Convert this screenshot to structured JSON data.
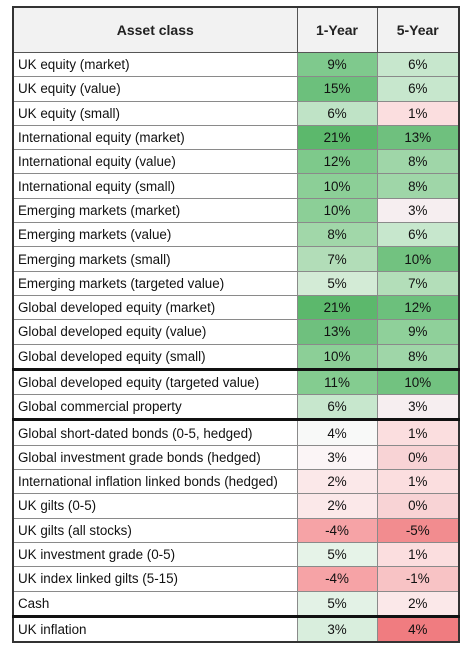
{
  "header": {
    "asset_class": "Asset class",
    "one_year": "1-Year",
    "five_year": "5-Year"
  },
  "rows": [
    {
      "label": "UK equity (market)",
      "y1": "9%",
      "y5": "6%",
      "c1": "#7fc98d",
      "c5": "#c7e7cd"
    },
    {
      "label": "UK equity (value)",
      "y1": "15%",
      "y5": "6%",
      "c1": "#6cc07c",
      "c5": "#c7e7cd"
    },
    {
      "label": "UK equity (small)",
      "y1": "6%",
      "y5": "1%",
      "c1": "#bfe3c6",
      "c5": "#fbdedf"
    },
    {
      "label": "International equity (market)",
      "y1": "21%",
      "y5": "13%",
      "c1": "#5cb86c",
      "c5": "#6fc07e"
    },
    {
      "label": "International equity (value)",
      "y1": "12%",
      "y5": "8%",
      "c1": "#7ec98b",
      "c5": "#9fd6a8"
    },
    {
      "label": "International equity (small)",
      "y1": "10%",
      "y5": "8%",
      "c1": "#8ccf97",
      "c5": "#9fd6a8"
    },
    {
      "label": "Emerging markets (market)",
      "y1": "10%",
      "y5": "3%",
      "c1": "#8ccf97",
      "c5": "#f6eef0"
    },
    {
      "label": "Emerging markets (value)",
      "y1": "8%",
      "y5": "6%",
      "c1": "#a1d7a9",
      "c5": "#c7e7cd"
    },
    {
      "label": "Emerging markets (small)",
      "y1": "7%",
      "y5": "10%",
      "c1": "#b2ddb8",
      "c5": "#72c280"
    },
    {
      "label": "Emerging markets (targeted value)",
      "y1": "5%",
      "y5": "7%",
      "c1": "#d3ebd6",
      "c5": "#b3deb9"
    },
    {
      "label": "Global developed equity (market)",
      "y1": "21%",
      "y5": "12%",
      "c1": "#5cb86c",
      "c5": "#6cc07c"
    },
    {
      "label": "Global developed equity (value)",
      "y1": "13%",
      "y5": "9%",
      "c1": "#6fc07e",
      "c5": "#8fd09a"
    },
    {
      "label": "Global developed equity (small)",
      "y1": "10%",
      "y5": "8%",
      "c1": "#8ccf97",
      "c5": "#9fd6a8"
    },
    {
      "label": "Global developed equity (targeted value)",
      "y1": "11%",
      "y5": "10%",
      "c1": "#84cc90",
      "c5": "#72c280"
    },
    {
      "label": "Global commercial property",
      "y1": "6%",
      "y5": "3%",
      "c1": "#c7e7cd",
      "c5": "#f6eef0"
    },
    {
      "label": "Global short-dated bonds (0-5, hedged)",
      "y1": "4%",
      "y5": "1%",
      "c1": "#f8f9f8",
      "c5": "#fbdedf"
    },
    {
      "label": "Global investment grade bonds (hedged)",
      "y1": "3%",
      "y5": "0%",
      "c1": "#fbf5f6",
      "c5": "#f8d3d5"
    },
    {
      "label": "International inflation linked bonds (hedged)",
      "y1": "2%",
      "y5": "1%",
      "c1": "#fbe8e9",
      "c5": "#fbdedf"
    },
    {
      "label": "UK gilts (0-5)",
      "y1": "2%",
      "y5": "0%",
      "c1": "#fbe8e9",
      "c5": "#f8d3d5"
    },
    {
      "label": "UK gilts (all stocks)",
      "y1": "-4%",
      "y5": "-5%",
      "c1": "#f6a3a6",
      "c5": "#f28c8f"
    },
    {
      "label": "UK investment grade (0-5)",
      "y1": "5%",
      "y5": "1%",
      "c1": "#e6f3e8",
      "c5": "#fbdedf"
    },
    {
      "label": "UK index linked gilts (5-15)",
      "y1": "-4%",
      "y5": "-1%",
      "c1": "#f6a3a6",
      "c5": "#f8c3c5"
    },
    {
      "label": "Cash",
      "y1": "5%",
      "y5": "2%",
      "c1": "#e3f2e6",
      "c5": "#fbe8e9"
    },
    {
      "label": "UK inflation",
      "y1": "3%",
      "y5": "4%",
      "c1": "#d9eedd",
      "c5": "#f07c80"
    }
  ]
}
